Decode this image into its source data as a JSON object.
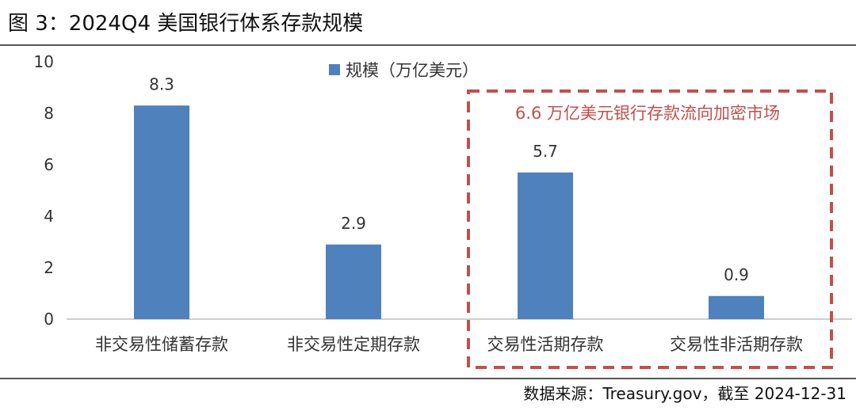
{
  "figure": {
    "title": "图 3：2024Q4 美国银行体系存款规模",
    "source": "数据来源：Treasury.gov，截至 2024-12-31"
  },
  "chart_data": {
    "type": "bar",
    "categories": [
      "非交易性储蓄存款",
      "非交易性定期存款",
      "交易性活期存款",
      "交易性非活期存款"
    ],
    "series": [
      {
        "name": "规模（万亿美元）",
        "values": [
          8.3,
          2.9,
          5.7,
          0.9
        ],
        "color": "#4f81bd"
      }
    ],
    "data_labels": [
      "8.3",
      "2.9",
      "5.7",
      "0.9"
    ],
    "ylim": [
      0,
      10
    ],
    "yticks": [
      0,
      2,
      4,
      6,
      8,
      10
    ],
    "ytick_labels": [
      "0",
      "2",
      "4",
      "6",
      "8",
      "10"
    ],
    "grid": false,
    "legend_position": "top-center",
    "annotation": {
      "text": "6.6 万亿美元银行存款流向加密市场",
      "color": "#c0504d",
      "covers_categories": [
        "交易性活期存款",
        "交易性非活期存款"
      ]
    }
  }
}
